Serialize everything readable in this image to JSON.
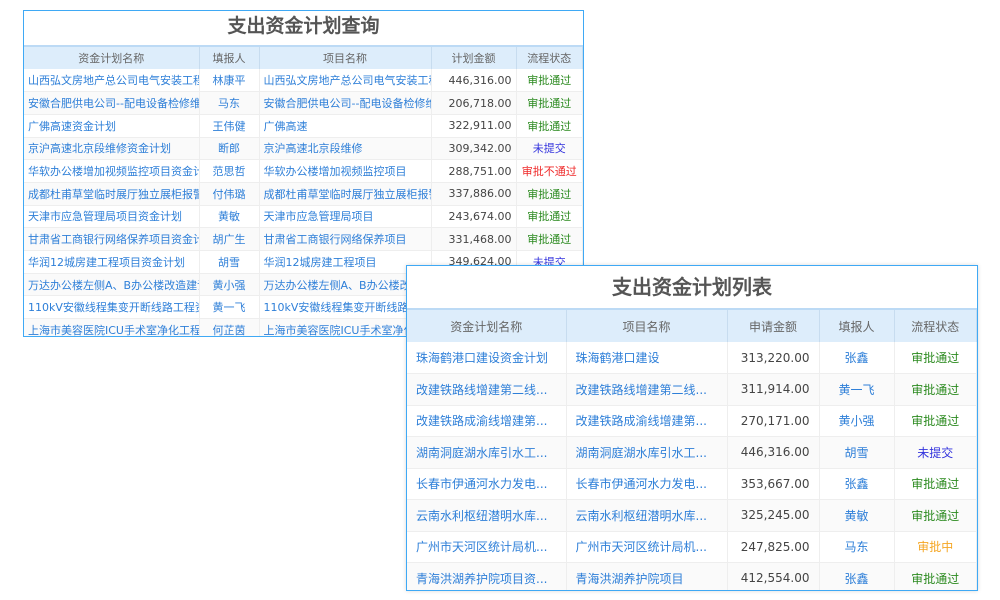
{
  "query_panel": {
    "title": "支出资金计划查询",
    "headers": [
      "资金计划名称",
      "填报人",
      "项目名称",
      "计划金额",
      "流程状态"
    ],
    "rows": [
      [
        "山西弘文房地产总公司电气安装工程资",
        "林康平",
        "山西弘文房地产总公司电气安装工程",
        "446,316.00",
        "审批通过",
        "ok"
      ],
      [
        "安徽合肥供电公司--配电设备检修维护",
        "马东",
        "安徽合肥供电公司--配电设备检修维护",
        "206,718.00",
        "审批通过",
        "ok"
      ],
      [
        "广佛高速资金计划",
        "王伟健",
        "广佛高速",
        "322,911.00",
        "审批通过",
        "ok"
      ],
      [
        "京沪高速北京段维修资金计划",
        "断郎",
        "京沪高速北京段维修",
        "309,342.00",
        "未提交",
        "un"
      ],
      [
        "华软办公楼增加视频监控项目资金计划",
        "范思哲",
        "华软办公楼增加视频监控项目",
        "288,751.00",
        "审批不通过",
        "no"
      ],
      [
        "成都杜甫草堂临时展厅独立展柜报警设",
        "付伟璐",
        "成都杜甫草堂临时展厅独立展柜报警",
        "337,886.00",
        "审批通过",
        "ok"
      ],
      [
        "天津市应急管理局项目资金计划",
        "黄敏",
        "天津市应急管理局项目",
        "243,674.00",
        "审批通过",
        "ok"
      ],
      [
        "甘肃省工商银行网络保养项目资金计划",
        "胡广生",
        "甘肃省工商银行网络保养项目",
        "331,468.00",
        "审批通过",
        "ok"
      ],
      [
        "华润12城房建工程项目资金计划",
        "胡雪",
        "华润12城房建工程项目",
        "349,624.00",
        "未提交",
        "un"
      ],
      [
        "万达办公楼左侧A、B办公楼改造建设",
        "黄小强",
        "万达办公楼左侧A、B办公楼改造",
        "",
        "",
        ""
      ],
      [
        "110kV安徽线程集变开断线路工程资金",
        "黄一飞",
        "110kV安徽线程集变开断线路工",
        "",
        "",
        ""
      ],
      [
        "上海市美容医院ICU手术室净化工程资",
        "何芷茵",
        "上海市美容医院ICU手术室净化",
        "",
        "",
        ""
      ]
    ]
  },
  "list_panel": {
    "title": "支出资金计划列表",
    "headers": [
      "资金计划名称",
      "项目名称",
      "申请金额",
      "填报人",
      "流程状态"
    ],
    "rows": [
      [
        "珠海鹤港口建设资金计划",
        "珠海鹤港口建设",
        "313,220.00",
        "张鑫",
        "审批通过",
        "ok"
      ],
      [
        "改建铁路线增建第二线...",
        "改建铁路线增建第二线...",
        "311,914.00",
        "黄一飞",
        "审批通过",
        "ok"
      ],
      [
        "改建铁路成渝线增建第...",
        "改建铁路成渝线增建第...",
        "270,171.00",
        "黄小强",
        "审批通过",
        "ok"
      ],
      [
        "湖南洞庭湖水库引水工...",
        "湖南洞庭湖水库引水工...",
        "446,316.00",
        "胡雪",
        "未提交",
        "un"
      ],
      [
        "长春市伊通河水力发电...",
        "长春市伊通河水力发电...",
        "353,667.00",
        "张鑫",
        "审批通过",
        "ok"
      ],
      [
        "云南水利枢纽潜明水库...",
        "云南水利枢纽潜明水库...",
        "325,245.00",
        "黄敏",
        "审批通过",
        "ok"
      ],
      [
        "广州市天河区统计局机...",
        "广州市天河区统计局机...",
        "247,825.00",
        "马东",
        "审批中",
        "ing"
      ],
      [
        "青海洪湖养护院项目资...",
        "青海洪湖养护院项目",
        "412,554.00",
        "张鑫",
        "审批通过",
        "ok"
      ]
    ]
  },
  "colors": {
    "border": "#3fa9f5",
    "header_bg": "#ddedfb",
    "link": "#2e7fd8",
    "approved": "#2b8a1f",
    "rejected": "#ef2a2a",
    "not_submitted": "#3333dd",
    "in_review": "#f5a623"
  }
}
